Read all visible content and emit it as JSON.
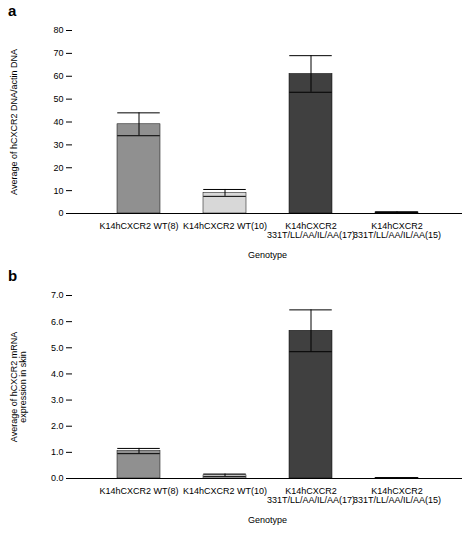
{
  "chart_data": [
    {
      "type": "bar",
      "title": "a",
      "xlabel": "Genotype",
      "ylabel": "Average of hCXCR2 DNA/actin DNA",
      "categories": [
        "K14hCXCR2 WT(8)",
        "K14hCXCR2 WT(10)",
        "K14hCXCR2\n331T/LL/AA/IL/AA(17)",
        "K14hCXCR2\n331T/LL/AA/IL/AA(15)"
      ],
      "values": [
        39,
        9,
        61,
        0.5
      ],
      "errors": [
        5,
        1.5,
        8,
        0.2
      ],
      "colors": [
        "#909090",
        "#d8d8d8",
        "#404040",
        "#404040"
      ],
      "ylim": [
        0,
        80
      ],
      "yticks": [
        0,
        10,
        20,
        30,
        40,
        50,
        60,
        70,
        80
      ],
      "grid": false
    },
    {
      "type": "bar",
      "title": "b",
      "xlabel": "Genotype",
      "ylabel": "Average of hCXCR2 mRNA\nexpression in skin",
      "categories": [
        "K14hCXCR2 WT(8)",
        "K14hCXCR2 WT(10)",
        "K14hCXCR2\n331T/LL/AA/IL/AA(17)",
        "K14hCXCR2\n331T/LL/AA/IL/AA(15)"
      ],
      "values": [
        1.05,
        0.12,
        5.65,
        0.02
      ],
      "errors": [
        0.1,
        0.05,
        0.8,
        0.01
      ],
      "colors": [
        "#909090",
        "#d8d8d8",
        "#404040",
        "#d8d8d8"
      ],
      "ylim": [
        0,
        7
      ],
      "yticks": [
        0,
        1,
        2,
        3,
        4,
        5,
        6,
        7
      ],
      "grid": false
    }
  ]
}
